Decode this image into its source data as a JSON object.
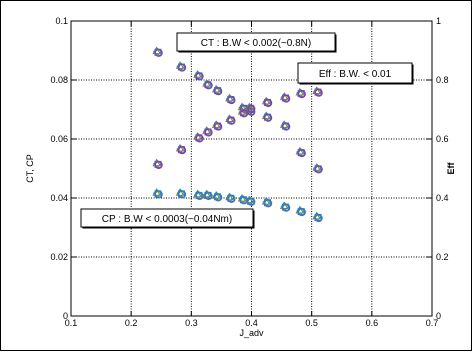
{
  "chart_data": {
    "type": "scatter",
    "xlabel": "J_adv",
    "ylabel": "CT, CP",
    "y2label": "Eff",
    "xlim": [
      0.1,
      0.7
    ],
    "ylim": [
      0,
      0.1
    ],
    "y2lim": [
      0,
      1
    ],
    "grid": true,
    "x_ticks": [
      "0.1",
      "0.2",
      "0.3",
      "0.4",
      "0.5",
      "0.6",
      "0.7"
    ],
    "y_ticks": [
      "0",
      "0.02",
      "0.04",
      "0.06",
      "0.08",
      "0.1"
    ],
    "y2_ticks": [
      "0",
      "0.2",
      "0.4",
      "0.6",
      "0.8",
      "1"
    ],
    "annotations": [
      {
        "text": "CT : B.W < 0.002(~0.8N)"
      },
      {
        "text": "Eff : B.W. < 0.01"
      },
      {
        "text": "CP : B.W < 0.0003(~0.04Nm)"
      }
    ],
    "series": [
      {
        "axis": "left",
        "color": "#7b3fbf",
        "points": [
          [
            0.244,
            0.0895
          ],
          [
            0.283,
            0.0845
          ],
          [
            0.312,
            0.0815
          ],
          [
            0.327,
            0.0785
          ],
          [
            0.343,
            0.0765
          ],
          [
            0.365,
            0.0735
          ],
          [
            0.386,
            0.0705
          ],
          [
            0.398,
            0.0695
          ],
          [
            0.426,
            0.0675
          ],
          [
            0.456,
            0.0645
          ],
          [
            0.482,
            0.0555
          ],
          [
            0.51,
            0.05
          ]
        ]
      },
      {
        "axis": "left",
        "color": "#2a7ad8",
        "points": [
          [
            0.244,
            0.0415
          ],
          [
            0.283,
            0.0415
          ],
          [
            0.312,
            0.041
          ],
          [
            0.327,
            0.041
          ],
          [
            0.343,
            0.0405
          ],
          [
            0.365,
            0.04
          ],
          [
            0.386,
            0.0395
          ],
          [
            0.398,
            0.039
          ],
          [
            0.426,
            0.0385
          ],
          [
            0.456,
            0.037
          ],
          [
            0.482,
            0.0355
          ],
          [
            0.51,
            0.0335
          ]
        ]
      },
      {
        "axis": "right",
        "color": "#9a2fb0",
        "points": [
          [
            0.244,
            0.515
          ],
          [
            0.283,
            0.565
          ],
          [
            0.312,
            0.605
          ],
          [
            0.327,
            0.625
          ],
          [
            0.343,
            0.645
          ],
          [
            0.365,
            0.665
          ],
          [
            0.386,
            0.69
          ],
          [
            0.398,
            0.705
          ],
          [
            0.426,
            0.725
          ],
          [
            0.456,
            0.74
          ],
          [
            0.482,
            0.755
          ],
          [
            0.51,
            0.76
          ]
        ]
      }
    ]
  }
}
